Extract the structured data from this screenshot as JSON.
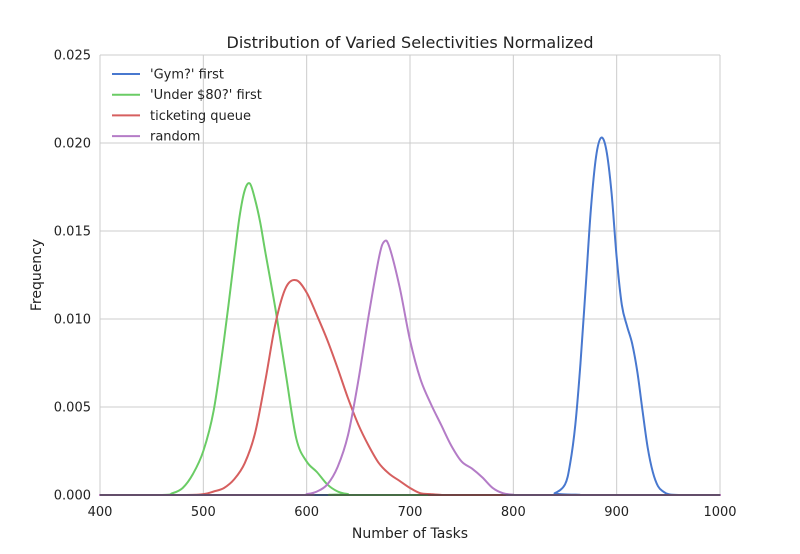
{
  "chart_data": {
    "type": "line",
    "title": "Distribution of Varied Selectivities Normalized",
    "xlabel": "Number of Tasks",
    "ylabel": "Frequency",
    "xlim": [
      400,
      1000
    ],
    "ylim": [
      0,
      0.025
    ],
    "xticks": [
      400,
      500,
      600,
      700,
      800,
      900,
      1000
    ],
    "xtick_labels": [
      "400",
      "500",
      "600",
      "700",
      "800",
      "900",
      "1000"
    ],
    "yticks": [
      0,
      0.005,
      0.01,
      0.015,
      0.02,
      0.025
    ],
    "ytick_labels": [
      "0.000",
      "0.005",
      "0.010",
      "0.015",
      "0.020",
      "0.025"
    ],
    "grid": true,
    "legend_position": "top-left",
    "series": [
      {
        "name": "'Gym?' first",
        "color": "#4878cf",
        "x": [
          400,
          830,
          840,
          850,
          855,
          860,
          865,
          870,
          875,
          880,
          885,
          890,
          895,
          900,
          905,
          910,
          915,
          920,
          925,
          930,
          935,
          940,
          945,
          950,
          960,
          1000
        ],
        "y": [
          0,
          0,
          0.0001,
          0.0006,
          0.0018,
          0.004,
          0.0075,
          0.0118,
          0.0162,
          0.0192,
          0.0203,
          0.0196,
          0.0172,
          0.0135,
          0.0108,
          0.0096,
          0.0086,
          0.007,
          0.0048,
          0.0027,
          0.0013,
          0.0005,
          0.0002,
          5e-05,
          0,
          0
        ]
      },
      {
        "name": "'Under $80?' first",
        "color": "#6acc65",
        "x": [
          400,
          460,
          470,
          480,
          490,
          500,
          510,
          520,
          530,
          535,
          540,
          545,
          550,
          555,
          560,
          570,
          580,
          590,
          600,
          610,
          620,
          630,
          640,
          650,
          1000
        ],
        "y": [
          0,
          0,
          0.0001,
          0.0004,
          0.0012,
          0.0025,
          0.0048,
          0.0088,
          0.0135,
          0.0158,
          0.0173,
          0.0177,
          0.0168,
          0.0155,
          0.0138,
          0.0105,
          0.0068,
          0.0032,
          0.0019,
          0.0013,
          0.0006,
          0.0002,
          5e-05,
          0,
          0
        ]
      },
      {
        "name": "ticketing queue",
        "color": "#d65f5f",
        "x": [
          400,
          480,
          500,
          510,
          520,
          530,
          540,
          550,
          560,
          570,
          580,
          590,
          600,
          610,
          620,
          630,
          640,
          650,
          660,
          670,
          680,
          690,
          700,
          710,
          720,
          730,
          740,
          1000
        ],
        "y": [
          0,
          0,
          5e-05,
          0.0002,
          0.0004,
          0.0009,
          0.0018,
          0.0035,
          0.0065,
          0.0098,
          0.0118,
          0.0122,
          0.0115,
          0.0102,
          0.0088,
          0.0072,
          0.0055,
          0.004,
          0.0028,
          0.0018,
          0.0012,
          0.0008,
          0.0004,
          0.0001,
          5e-05,
          1e-05,
          0,
          0
        ]
      },
      {
        "name": "random",
        "color": "#b47cc7",
        "x": [
          400,
          590,
          600,
          610,
          620,
          630,
          640,
          650,
          660,
          670,
          675,
          680,
          690,
          700,
          710,
          720,
          730,
          740,
          750,
          760,
          770,
          780,
          790,
          800,
          810,
          1000
        ],
        "y": [
          0,
          0,
          5e-05,
          0.0002,
          0.0006,
          0.0016,
          0.0034,
          0.0065,
          0.0102,
          0.0135,
          0.0144,
          0.0141,
          0.0118,
          0.0088,
          0.0066,
          0.0052,
          0.004,
          0.0028,
          0.0019,
          0.0015,
          0.001,
          0.0004,
          0.0001,
          2e-05,
          0,
          0
        ]
      }
    ]
  }
}
